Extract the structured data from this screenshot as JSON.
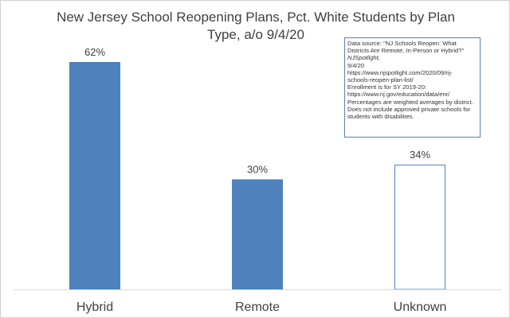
{
  "chart_data": {
    "type": "bar",
    "title": "New Jersey School Reopening Plans, Pct. White Students by Plan Type, a/o 9/4/20",
    "categories": [
      "Hybrid",
      "Remote",
      "Unknown"
    ],
    "values": [
      62,
      30,
      34
    ],
    "data_labels": [
      "62%",
      "30%",
      "34%"
    ],
    "bar_styles": [
      "filled",
      "filled",
      "outline"
    ],
    "ylim": [
      0,
      75
    ],
    "grid": false,
    "legend": "none",
    "colors": {
      "fill": "#4f81bd",
      "outline_border": "#4f81bd",
      "axis": "#d9d9d9"
    },
    "annotation": {
      "lines": [
        "Data source: \"NJ Schools Reopen: What",
        "Districts Are Remote, In-Person or Hybrid?\"",
        "NJSpotlight,",
        " 9/4/20",
        "https://www.njspotlight.com/2020/09/nj-",
        "schools-reopen-plan-list/",
        "Enrollment is for SY 2019-20:",
        "https://www.nj.gov/education/data/enr/",
        "Percentages are weighted averages by district.",
        "Does not include approved private schools for",
        "students with disabilities."
      ]
    }
  }
}
